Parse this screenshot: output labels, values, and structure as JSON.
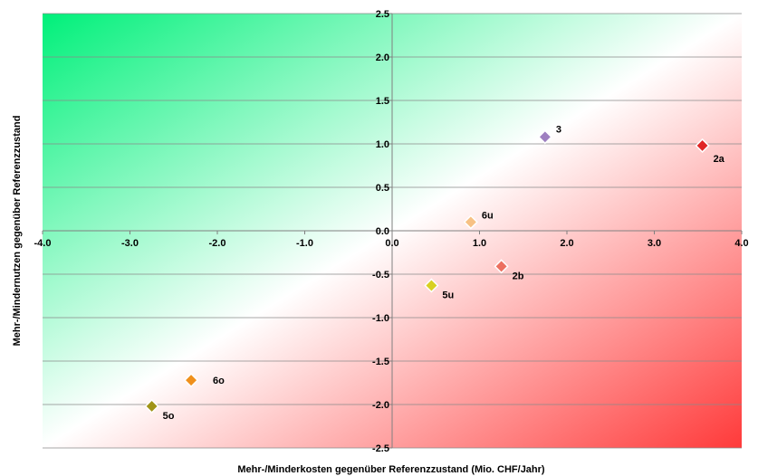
{
  "chart_data": {
    "type": "scatter",
    "xlabel": "Mehr-/Minderkosten gegenüber Referenzzustand (Mio. CHF/Jahr)",
    "ylabel": "Mehr-/Mindernutzen gegenüber Referenzzustand",
    "xlim": [
      -4.0,
      4.0
    ],
    "ylim": [
      -2.5,
      2.5
    ],
    "xticks": [
      -4.0,
      -3.0,
      -2.0,
      -1.0,
      0.0,
      1.0,
      2.0,
      3.0,
      4.0
    ],
    "yticks": [
      -2.5,
      -2.0,
      -1.5,
      -1.0,
      -0.5,
      0.0,
      0.5,
      1.0,
      1.5,
      2.0,
      2.5
    ],
    "xtick_labels": [
      "-4.0",
      "-3.0",
      "-2.0",
      "-1.0",
      "0.0",
      "1.0",
      "2.0",
      "3.0",
      "4.0"
    ],
    "ytick_labels": [
      "-2.5",
      "-2.0",
      "-1.5",
      "-1.0",
      "-0.5",
      "0.0",
      "0.5",
      "1.0",
      "1.5",
      "2.0",
      "2.5"
    ],
    "grid": "horizontal",
    "background": "diagonal gradient: green top-left, white diagonal, red bottom-right",
    "colors": {
      "benefit": "#00f07a",
      "cost": "#ff3a3a"
    },
    "points": [
      {
        "label": "2a",
        "x": 3.55,
        "y": 0.98,
        "color": "#e02626"
      },
      {
        "label": "3",
        "x": 1.75,
        "y": 1.08,
        "color": "#9e7fc0"
      },
      {
        "label": "6u",
        "x": 0.9,
        "y": 0.1,
        "color": "#f7c184"
      },
      {
        "label": "2b",
        "x": 1.25,
        "y": -0.41,
        "color": "#ec7060"
      },
      {
        "label": "5u",
        "x": 0.45,
        "y": -0.63,
        "color": "#d8d021"
      },
      {
        "label": "6o",
        "x": -2.3,
        "y": -1.72,
        "color": "#f0901c"
      },
      {
        "label": "5o",
        "x": -2.75,
        "y": -2.02,
        "color": "#a09418"
      }
    ]
  }
}
